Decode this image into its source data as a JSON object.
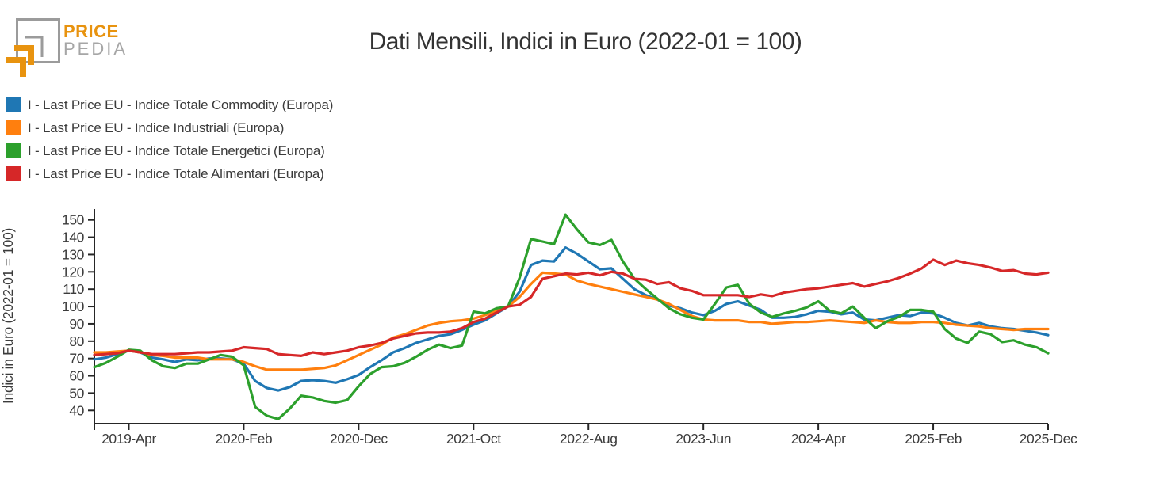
{
  "logo": {
    "brand_line1": "PRICE",
    "brand_line2": "PEDIA"
  },
  "chart_data": {
    "type": "line",
    "title": "Dati Mensili, Indici in Euro (2022-01 = 100)",
    "xlabel": "",
    "ylabel": "Indici in Euro (2022-01 = 100)",
    "ylim": [
      32,
      156
    ],
    "y_ticks": [
      40,
      50,
      60,
      70,
      80,
      90,
      100,
      110,
      120,
      130,
      140,
      150
    ],
    "grid": false,
    "legend_position": "top-left",
    "x_tick_labels": [
      "2019-Apr",
      "2020-Feb",
      "2020-Dec",
      "2021-Oct",
      "2022-Aug",
      "2023-Jun",
      "2024-Apr",
      "2025-Feb",
      "2025-Dec"
    ],
    "x_tick_month_indices": [
      3,
      13,
      23,
      33,
      43,
      53,
      63,
      73,
      83
    ],
    "months": [
      "2019-Jan",
      "2019-Feb",
      "2019-Mar",
      "2019-Apr",
      "2019-May",
      "2019-Jun",
      "2019-Jul",
      "2019-Aug",
      "2019-Sep",
      "2019-Oct",
      "2019-Nov",
      "2019-Dec",
      "2020-Jan",
      "2020-Feb",
      "2020-Mar",
      "2020-Apr",
      "2020-May",
      "2020-Jun",
      "2020-Jul",
      "2020-Aug",
      "2020-Sep",
      "2020-Oct",
      "2020-Nov",
      "2020-Dec",
      "2021-Jan",
      "2021-Feb",
      "2021-Mar",
      "2021-Apr",
      "2021-May",
      "2021-Jun",
      "2021-Jul",
      "2021-Aug",
      "2021-Sep",
      "2021-Oct",
      "2021-Nov",
      "2021-Dec",
      "2022-Jan",
      "2022-Feb",
      "2022-Mar",
      "2022-Apr",
      "2022-May",
      "2022-Jun",
      "2022-Jul",
      "2022-Aug",
      "2022-Sep",
      "2022-Oct",
      "2022-Nov",
      "2022-Dec",
      "2023-Jan",
      "2023-Feb",
      "2023-Mar",
      "2023-Apr",
      "2023-May",
      "2023-Jun",
      "2023-Jul",
      "2023-Aug",
      "2023-Sep",
      "2023-Oct",
      "2023-Nov",
      "2023-Dec",
      "2024-Jan",
      "2024-Feb",
      "2024-Mar",
      "2024-Apr",
      "2024-May",
      "2024-Jun",
      "2024-Jul",
      "2024-Aug",
      "2024-Sep",
      "2024-Oct",
      "2024-Nov",
      "2024-Dec",
      "2025-Jan",
      "2025-Feb",
      "2025-Mar",
      "2025-Apr",
      "2025-May",
      "2025-Jun",
      "2025-Jul",
      "2025-Aug",
      "2025-Sep",
      "2025-Oct",
      "2025-Nov",
      "2025-Dec"
    ],
    "series": [
      {
        "name": "I - Last Price EU - Indice Totale Commodity (Europa)",
        "color": "#1f77b4",
        "values": [
          69.5,
          70.5,
          72.5,
          74.5,
          73.5,
          70.5,
          69.5,
          68,
          69.5,
          69,
          70,
          70,
          69.5,
          67,
          57,
          53,
          51.5,
          53.5,
          57,
          57.5,
          57,
          56,
          58,
          60.5,
          65,
          69,
          73.5,
          76,
          79,
          81,
          83,
          84,
          86.5,
          89.5,
          92,
          96,
          100,
          108.5,
          124,
          126.5,
          126,
          134,
          130.5,
          126,
          121.5,
          122,
          116,
          110,
          106.5,
          104,
          100.5,
          99,
          96.5,
          95,
          97.5,
          101.5,
          103,
          100.5,
          98,
          93.5,
          93.5,
          94,
          95.5,
          97.5,
          97,
          95.5,
          96.5,
          92.5,
          92,
          93.5,
          95,
          94.5,
          96.5,
          96,
          93.5,
          90.5,
          89,
          90.5,
          88.5,
          87.5,
          87,
          86,
          85,
          83.5
        ]
      },
      {
        "name": "I - Last Price EU - Indice Industriali (Europa)",
        "color": "#ff7f0e",
        "values": [
          73.5,
          73.5,
          74,
          74.5,
          73.5,
          72,
          71.5,
          70.5,
          70.5,
          70.5,
          69.5,
          69.5,
          69.5,
          68,
          65.5,
          63.5,
          63.5,
          63.5,
          63.5,
          64,
          64.5,
          66,
          69,
          72,
          75,
          78,
          82,
          84,
          86.5,
          89,
          90.5,
          91.5,
          92,
          93,
          95,
          97.5,
          100,
          105.5,
          113,
          119.5,
          119,
          118.5,
          115,
          113,
          111.5,
          110,
          108.5,
          107,
          105.5,
          104,
          101.5,
          98,
          94.5,
          92.5,
          92,
          92,
          92,
          91,
          91,
          90,
          90.5,
          91,
          91,
          91.5,
          92,
          91.5,
          91,
          90.5,
          92,
          91,
          90.5,
          90.5,
          91,
          91,
          90.5,
          89.5,
          89,
          88.5,
          87.5,
          87,
          86.5,
          87,
          87,
          87
        ]
      },
      {
        "name": "I - Last Price EU - Indice Totale Energetici (Europa)",
        "color": "#2ca02c",
        "values": [
          65,
          67.5,
          71,
          75,
          74.5,
          69,
          65.5,
          64.5,
          67,
          67,
          69.5,
          72,
          71,
          66,
          42,
          37,
          35,
          41,
          48.5,
          47.5,
          45.5,
          44.5,
          46,
          54,
          61,
          65,
          65.5,
          67.5,
          71,
          75,
          78,
          76,
          77.5,
          97,
          96,
          99,
          100,
          116.5,
          139,
          137.5,
          136,
          153,
          144.5,
          137,
          135.5,
          138.5,
          126,
          116,
          110,
          104.5,
          99,
          95.5,
          93.5,
          92.5,
          101.5,
          111,
          112.5,
          101.5,
          96.5,
          94,
          96,
          97.5,
          99.5,
          103,
          97.5,
          96,
          100,
          93.5,
          87.5,
          91.5,
          94,
          98,
          98,
          97,
          87,
          81.5,
          79,
          85.5,
          84,
          79.5,
          80.5,
          78,
          76.5,
          73
        ]
      },
      {
        "name": "I - Last Price EU - Indice Totale Alimentari (Europa)",
        "color": "#d62728",
        "values": [
          72,
          72.5,
          73,
          74.5,
          73.5,
          72.5,
          72.5,
          72.5,
          73,
          73.5,
          73.5,
          74,
          74.5,
          76.5,
          76,
          75.5,
          72.5,
          72,
          71.5,
          73.5,
          72.5,
          73.5,
          74.5,
          76.5,
          77.5,
          79,
          81.5,
          83,
          84.5,
          85,
          85,
          85.5,
          87.5,
          91,
          93,
          96.5,
          100,
          101,
          105.5,
          116,
          117.5,
          119,
          118.5,
          119.5,
          118,
          120,
          119,
          116,
          115.5,
          113,
          114,
          110.5,
          109,
          106.5,
          106.5,
          106.5,
          106.5,
          105.5,
          107,
          106,
          108,
          109,
          110,
          110.5,
          111.5,
          112.5,
          113.5,
          111.5,
          113,
          114.5,
          116.5,
          119,
          122,
          127,
          124,
          126.5,
          125,
          124,
          122.5,
          120.5,
          121,
          119,
          118.5,
          119.5
        ]
      }
    ]
  }
}
